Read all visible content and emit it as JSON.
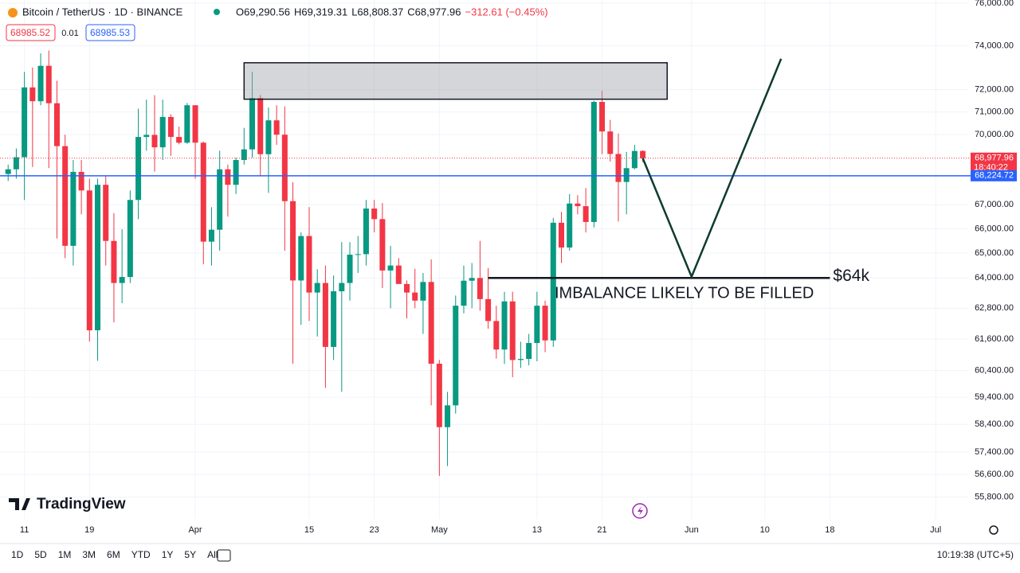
{
  "header": {
    "symbol": "Bitcoin / TetherUS · 1D · BINANCE",
    "ohlc": [
      "O69,290.56",
      "H69,319.31",
      "L68,808.37",
      "C68,977.96",
      "−312.61 (−0.45%)"
    ],
    "bid": "68985.52",
    "spread": "0.01",
    "ask": "68985.53"
  },
  "chart_data": {
    "type": "candlestick",
    "log_scale": true,
    "grid": true,
    "up_color": "#089981",
    "down_color": "#f23645",
    "x": [
      "Mar 9",
      "Mar 10",
      "Mar 11",
      "Mar 12",
      "Mar 13",
      "Mar 14",
      "Mar 15",
      "Mar 16",
      "Mar 17",
      "Mar 18",
      "Mar 19",
      "Mar 20",
      "Mar 21",
      "Mar 22",
      "Mar 23",
      "Mar 24",
      "Mar 25",
      "Mar 26",
      "Mar 27",
      "Mar 28",
      "Mar 29",
      "Mar 30",
      "Mar 31",
      "Apr 1",
      "Apr 2",
      "Apr 3",
      "Apr 4",
      "Apr 5",
      "Apr 6",
      "Apr 7",
      "Apr 8",
      "Apr 9",
      "Apr 10",
      "Apr 11",
      "Apr 12",
      "Apr 13",
      "Apr 14",
      "Apr 15",
      "Apr 16",
      "Apr 17",
      "Apr 18",
      "Apr 19",
      "Apr 20",
      "Apr 21",
      "Apr 22",
      "Apr 23",
      "Apr 24",
      "Apr 25",
      "Apr 26",
      "Apr 27",
      "Apr 28",
      "Apr 29",
      "Apr 30",
      "May 1",
      "May 2",
      "May 3",
      "May 4",
      "May 5",
      "May 6",
      "May 7",
      "May 8",
      "May 9",
      "May 10",
      "May 11",
      "May 12",
      "May 13",
      "May 14",
      "May 15",
      "May 16",
      "May 17",
      "May 18",
      "May 19",
      "May 20",
      "May 21",
      "May 22",
      "May 23",
      "May 24",
      "May 25",
      "May 26"
    ],
    "open": [
      68300,
      68500,
      69020,
      72100,
      71480,
      73080,
      71390,
      69500,
      65300,
      68390,
      67600,
      61940,
      67840,
      65500,
      63800,
      64040,
      67200,
      69900,
      69990,
      69450,
      70780,
      69900,
      69650,
      71300,
      69650,
      65470,
      65960,
      68500,
      67840,
      68900,
      69360,
      71620,
      69150,
      70630,
      70000,
      67150,
      63900,
      65700,
      63420,
      63800,
      61300,
      63470,
      63800,
      64940,
      64960,
      66840,
      66400,
      64300,
      64500,
      63760,
      63420,
      63100,
      63840,
      60660,
      58300,
      59100,
      62900,
      63890,
      64000,
      63160,
      62300,
      61200,
      63070,
      60800,
      60840,
      61450,
      62900,
      61550,
      66250,
      65230,
      67050,
      66940,
      66280,
      71450,
      70140,
      69160,
      67960,
      68550,
      69290.56
    ],
    "high": [
      68700,
      69400,
      72800,
      73000,
      73650,
      73780,
      72400,
      70000,
      68900,
      68900,
      68100,
      68100,
      68200,
      66650,
      65980,
      67600,
      71150,
      71550,
      71750,
      71550,
      70900,
      70350,
      71400,
      71300,
      69700,
      66900,
      69300,
      68700,
      69000,
      70300,
      72800,
      71760,
      71200,
      71300,
      71250,
      67950,
      65850,
      66900,
      64350,
      64500,
      64100,
      65450,
      65450,
      65700,
      67200,
      67200,
      67070,
      65300,
      64800,
      63900,
      64370,
      64200,
      64750,
      60800,
      59600,
      63300,
      64500,
      64600,
      65500,
      64400,
      62900,
      63450,
      63450,
      61500,
      61800,
      63450,
      63100,
      66450,
      66700,
      67450,
      67400,
      67700,
      71500,
      71950,
      70650,
      70050,
      69250,
      69560,
      69319.31
    ],
    "low": [
      68000,
      68100,
      67200,
      68600,
      71300,
      68550,
      65600,
      64800,
      64500,
      66600,
      61500,
      60770,
      64500,
      62250,
      63000,
      63800,
      66400,
      69300,
      68400,
      68900,
      69080,
      69580,
      69600,
      68100,
      64550,
      64500,
      65100,
      66500,
      67450,
      68700,
      69000,
      68200,
      67500,
      69560,
      65100,
      60660,
      62150,
      62300,
      61700,
      59750,
      60800,
      59600,
      63100,
      64200,
      64500,
      65850,
      63600,
      62800,
      63800,
      62400,
      62800,
      61800,
      59100,
      56550,
      56900,
      58800,
      62600,
      62800,
      62700,
      62000,
      60850,
      60650,
      60150,
      60500,
      60600,
      60750,
      61100,
      61300,
      64600,
      65100,
      66600,
      65850,
      66050,
      69150,
      68830,
      66300,
      66600,
      68500,
      68808.37
    ],
    "close": [
      68500,
      69020,
      72100,
      71480,
      73080,
      71390,
      69500,
      65300,
      68390,
      67600,
      61940,
      67840,
      65500,
      63800,
      64040,
      67200,
      69900,
      69990,
      69450,
      70780,
      69900,
      69650,
      71300,
      69650,
      65470,
      65960,
      68500,
      67840,
      68900,
      69360,
      71620,
      69150,
      70630,
      70000,
      67150,
      63900,
      65700,
      63420,
      63800,
      61300,
      63470,
      63800,
      64940,
      64960,
      66840,
      66400,
      64300,
      64500,
      63760,
      63420,
      63100,
      63840,
      60660,
      58300,
      59100,
      62900,
      63890,
      64000,
      63160,
      62300,
      61200,
      63070,
      60800,
      60840,
      61450,
      62900,
      61550,
      66250,
      65230,
      67050,
      66940,
      66280,
      71450,
      70140,
      69160,
      67960,
      68550,
      69290.56,
      68977.96
    ],
    "xlim": [
      "Mar 8",
      "Jul 5"
    ],
    "xticks": [
      {
        "value": "Mar 11",
        "label": "11"
      },
      {
        "value": "Mar 19",
        "label": "19"
      },
      {
        "value": "Apr 1",
        "label": "Apr"
      },
      {
        "value": "Apr 15",
        "label": "15"
      },
      {
        "value": "Apr 23",
        "label": "23"
      },
      {
        "value": "May 1",
        "label": "May"
      },
      {
        "value": "May 13",
        "label": "13"
      },
      {
        "value": "May 21",
        "label": "21"
      },
      {
        "value": "Jun 1",
        "label": "Jun"
      },
      {
        "value": "Jun 10",
        "label": "10"
      },
      {
        "value": "Jun 18",
        "label": "18"
      },
      {
        "value": "Jul 1",
        "label": "Jul"
      }
    ],
    "ylim": [
      55050,
      76150
    ],
    "yticks": [
      {
        "value": 76000,
        "label": "76,000.00"
      },
      {
        "value": 74000,
        "label": "74,000.00"
      },
      {
        "value": 72000,
        "label": "72,000.00"
      },
      {
        "value": 71000,
        "label": "71,000.00"
      },
      {
        "value": 70000,
        "label": "70,000.00"
      },
      {
        "value": 67000,
        "label": "67,000.00"
      },
      {
        "value": 66000,
        "label": "66,000.00"
      },
      {
        "value": 65000,
        "label": "65,000.00"
      },
      {
        "value": 64000,
        "label": "64,000.00"
      },
      {
        "value": 62800,
        "label": "62,800.00"
      },
      {
        "value": 61600,
        "label": "61,600.00"
      },
      {
        "value": 60400,
        "label": "60,400.00"
      },
      {
        "value": 59400,
        "label": "59,400.00"
      },
      {
        "value": 58400,
        "label": "58,400.00"
      },
      {
        "value": 57400,
        "label": "57,400.00"
      },
      {
        "value": 56600,
        "label": "56,600.00"
      },
      {
        "value": 55800,
        "label": "55,800.00"
      }
    ],
    "price_lines": [
      {
        "value": 68977.96,
        "label": "68,977.96",
        "countdown": "18:40:22",
        "color": "#f23645"
      },
      {
        "value": 68224.72,
        "label": "68,224.72",
        "color": "#2962ff"
      }
    ],
    "zone": {
      "from": "Apr 7",
      "to": "May 29",
      "top": 73220,
      "bottom": 71570
    },
    "level": {
      "from": "May 7",
      "to": "Jun 18",
      "value": 64000,
      "label": "$64k",
      "note": "IMBALANCE LIKELY TO BE FILLED"
    },
    "projection": {
      "x": [
        "May 26",
        "Jun 1",
        "Jun 12"
      ],
      "y": [
        68978,
        64050,
        73400
      ]
    }
  },
  "footer": {
    "logo": "TradingView",
    "ranges": [
      "1D",
      "5D",
      "1M",
      "3M",
      "6M",
      "YTD",
      "1Y",
      "5Y",
      "All"
    ],
    "clock": "10:19:38 (UTC+5)"
  }
}
